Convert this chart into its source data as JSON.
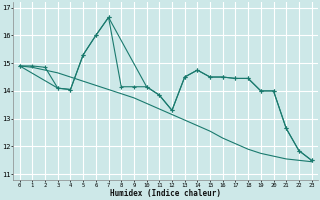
{
  "xlabel": "Humidex (Indice chaleur)",
  "background_color": "#cde8e8",
  "grid_color": "#ffffff",
  "line_color": "#1a7a6e",
  "xlim": [
    -0.5,
    23.5
  ],
  "ylim": [
    10.8,
    17.2
  ],
  "yticks": [
    11,
    12,
    13,
    14,
    15,
    16,
    17
  ],
  "xticks": [
    0,
    1,
    2,
    3,
    4,
    5,
    6,
    7,
    8,
    9,
    10,
    11,
    12,
    13,
    14,
    15,
    16,
    17,
    18,
    19,
    20,
    21,
    22,
    23
  ],
  "line1_x": [
    0,
    1,
    2,
    3,
    4,
    5,
    6,
    7,
    8,
    9,
    10,
    11,
    12,
    13,
    14,
    15,
    16,
    17,
    18,
    19,
    20,
    21,
    22,
    23
  ],
  "line1_y": [
    14.9,
    14.9,
    14.85,
    14.1,
    14.05,
    15.3,
    16.0,
    16.65,
    14.15,
    14.15,
    14.15,
    13.85,
    13.3,
    14.5,
    14.75,
    14.5,
    14.5,
    14.45,
    14.45,
    14.0,
    14.0,
    12.65,
    11.85,
    11.5
  ],
  "line2_x": [
    0,
    1,
    2,
    3,
    4,
    5,
    6,
    7,
    8,
    9,
    10,
    11,
    12,
    13,
    14,
    15,
    16,
    17,
    18,
    19,
    20,
    21,
    22,
    23
  ],
  "line2_y": [
    14.9,
    14.85,
    14.75,
    14.65,
    14.5,
    14.35,
    14.2,
    14.05,
    13.9,
    13.75,
    13.55,
    13.35,
    13.15,
    12.95,
    12.75,
    12.55,
    12.3,
    12.1,
    11.9,
    11.75,
    11.65,
    11.55,
    11.5,
    11.45
  ],
  "line3_x": [
    0,
    3,
    4,
    5,
    6,
    7,
    10,
    11,
    12,
    13,
    14,
    15,
    16,
    17,
    18,
    19,
    20,
    21,
    22,
    23
  ],
  "line3_y": [
    14.9,
    14.1,
    14.05,
    15.3,
    16.0,
    16.65,
    14.15,
    13.85,
    13.3,
    14.5,
    14.75,
    14.5,
    14.5,
    14.45,
    14.45,
    14.0,
    14.0,
    12.65,
    11.85,
    11.5
  ]
}
